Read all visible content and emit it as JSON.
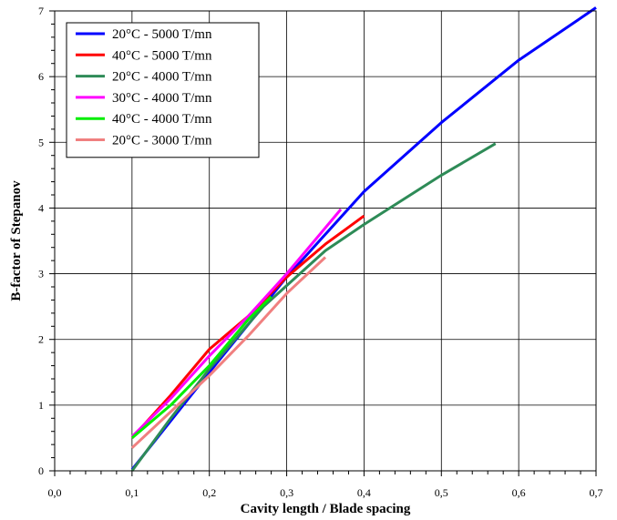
{
  "chart_data": {
    "type": "line",
    "title": "",
    "xlabel": "Cavity length / Blade spacing",
    "ylabel": "B-factor of Stepanov",
    "xlim": [
      0,
      0.7
    ],
    "ylim": [
      0,
      7
    ],
    "x_ticks": [
      "0,0",
      "0,1",
      "0,2",
      "0,3",
      "0,4",
      "0,5",
      "0,6",
      "0,7"
    ],
    "y_ticks": [
      "0",
      "1",
      "2",
      "3",
      "4",
      "5",
      "6",
      "7"
    ],
    "grid": true,
    "legend_position": "top-left",
    "series": [
      {
        "name": "20°C - 5000 T/mn",
        "color": "#0000ff",
        "x": [
          0.1,
          0.2,
          0.3,
          0.35,
          0.4,
          0.5,
          0.6,
          0.7
        ],
        "y": [
          0.02,
          1.5,
          2.95,
          3.6,
          4.25,
          5.3,
          6.25,
          7.05
        ]
      },
      {
        "name": "40°C - 5000 T/mn",
        "color": "#ff0000",
        "x": [
          0.1,
          0.15,
          0.2,
          0.25,
          0.3,
          0.35,
          0.4
        ],
        "y": [
          0.5,
          1.15,
          1.85,
          2.35,
          2.95,
          3.45,
          3.88
        ]
      },
      {
        "name": "20°C - 4000 T/mn",
        "color": "#2e8b57",
        "x": [
          0.1,
          0.15,
          0.2,
          0.27,
          0.35,
          0.4,
          0.5,
          0.57
        ],
        "y": [
          0.0,
          0.8,
          1.55,
          2.5,
          3.35,
          3.75,
          4.5,
          4.98
        ]
      },
      {
        "name": "30°C - 4000 T/mn",
        "color": "#ff00ff",
        "x": [
          0.1,
          0.15,
          0.2,
          0.25,
          0.3,
          0.37
        ],
        "y": [
          0.52,
          1.1,
          1.75,
          2.35,
          3.0,
          3.98
        ]
      },
      {
        "name": "40°C - 4000 T/mn",
        "color": "#00ee00",
        "x": [
          0.1,
          0.15,
          0.2,
          0.25,
          0.28
        ],
        "y": [
          0.5,
          1.0,
          1.6,
          2.3,
          2.65
        ]
      },
      {
        "name": "20°C - 3000 T/mn",
        "color": "#f08080",
        "x": [
          0.1,
          0.15,
          0.2,
          0.25,
          0.3,
          0.35
        ],
        "y": [
          0.35,
          0.9,
          1.45,
          2.05,
          2.7,
          3.25
        ]
      }
    ]
  }
}
